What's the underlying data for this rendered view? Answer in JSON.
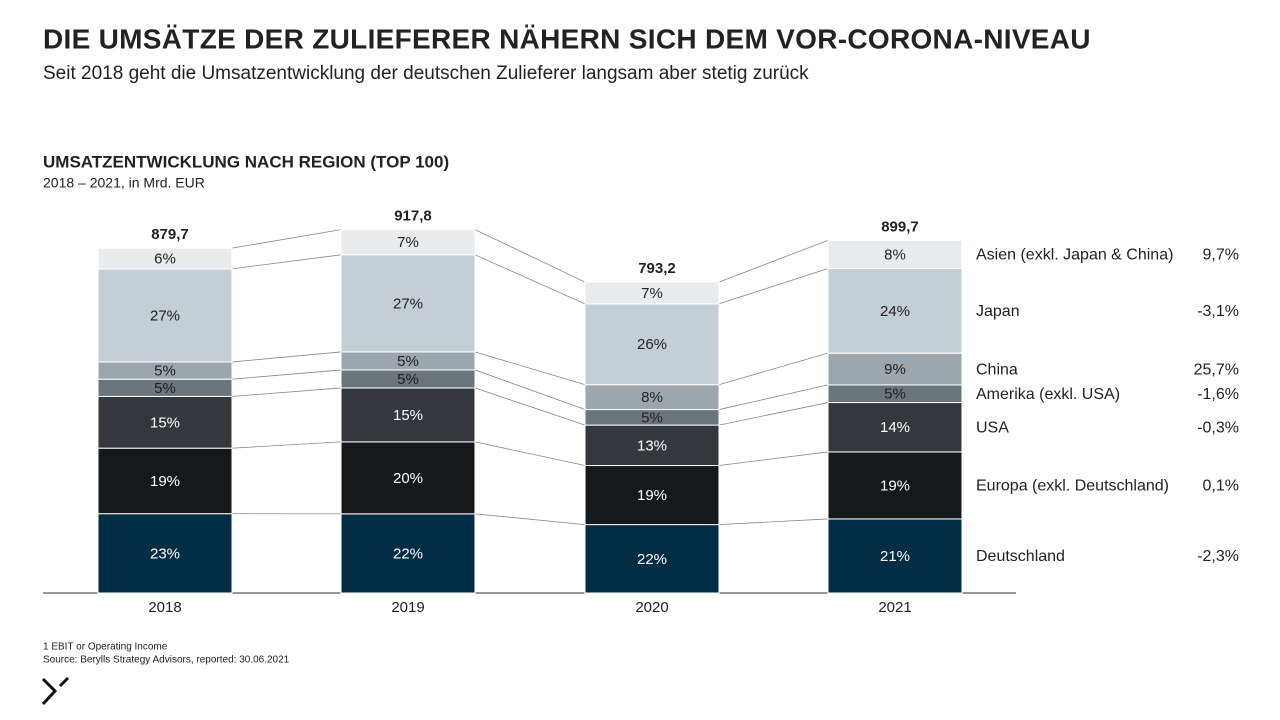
{
  "header": {
    "title": "DIE UMSÄTZE DER ZULIEFERER NÄHERN SICH DEM VOR-CORONA-NIVEAU",
    "subtitle": "Seit 2018 geht die Umsatzentwicklung der deutschen Zulieferer langsam aber stetig zurück"
  },
  "chart_data": {
    "type": "bar",
    "stacked": true,
    "title": "UMSATZENTWICKLUNG NACH REGION (TOP 100)",
    "subtitle": "2018 – 2021, in Mrd. EUR",
    "categories": [
      "2018",
      "2019",
      "2020",
      "2021"
    ],
    "totals": {
      "values": [
        879.7,
        917.8,
        793.2,
        899.7
      ],
      "value_labels": [
        "879,7",
        "917,8",
        "793,2",
        "899,7"
      ]
    },
    "series": [
      {
        "name": "Deutschland",
        "color": "#032d45",
        "values": [
          23,
          22,
          22,
          21
        ],
        "value_labels": [
          "23%",
          "22%",
          "22%",
          "21%"
        ],
        "change": -2.3,
        "change_label": "-2,3%"
      },
      {
        "name": "Europa (exkl. Deutschland)",
        "color": "#16181b",
        "values": [
          19,
          20,
          19,
          19
        ],
        "value_labels": [
          "19%",
          "20%",
          "19%",
          "19%"
        ],
        "change": 0.1,
        "change_label": "0,1%"
      },
      {
        "name": "USA",
        "color": "#34383d",
        "values": [
          15,
          15,
          13,
          14
        ],
        "value_labels": [
          "15%",
          "15%",
          "13%",
          "14%"
        ],
        "change": -0.3,
        "change_label": "-0,3%"
      },
      {
        "name": "Amerika (exkl. USA)",
        "color": "#6b757c",
        "values": [
          5,
          5,
          5,
          5
        ],
        "value_labels": [
          "5%",
          "5%",
          "5%",
          "5%"
        ],
        "change": -1.6,
        "change_label": "-1,6%"
      },
      {
        "name": "China",
        "color": "#9ba6ad",
        "values": [
          5,
          5,
          8,
          9
        ],
        "value_labels": [
          "5%",
          "5%",
          "8%",
          "9%"
        ],
        "change": 25.7,
        "change_label": "25,7%"
      },
      {
        "name": "Japan",
        "color": "#c3ced5",
        "values": [
          27,
          27,
          26,
          24
        ],
        "value_labels": [
          "27%",
          "27%",
          "26%",
          "24%"
        ],
        "change": -3.1,
        "change_label": "-3,1%"
      },
      {
        "name": "Asien (exkl. Japan & China)",
        "color": "#e8ecef",
        "values": [
          6,
          7,
          7,
          8
        ],
        "value_labels": [
          "6%",
          "7%",
          "7%",
          "8%"
        ],
        "change": 9.7,
        "change_label": "9,7%"
      }
    ]
  },
  "footnotes": [
    "1 EBIT or Operating Income",
    "Source: Berylls Strategy Advisors, reported: 30.06.2021"
  ]
}
